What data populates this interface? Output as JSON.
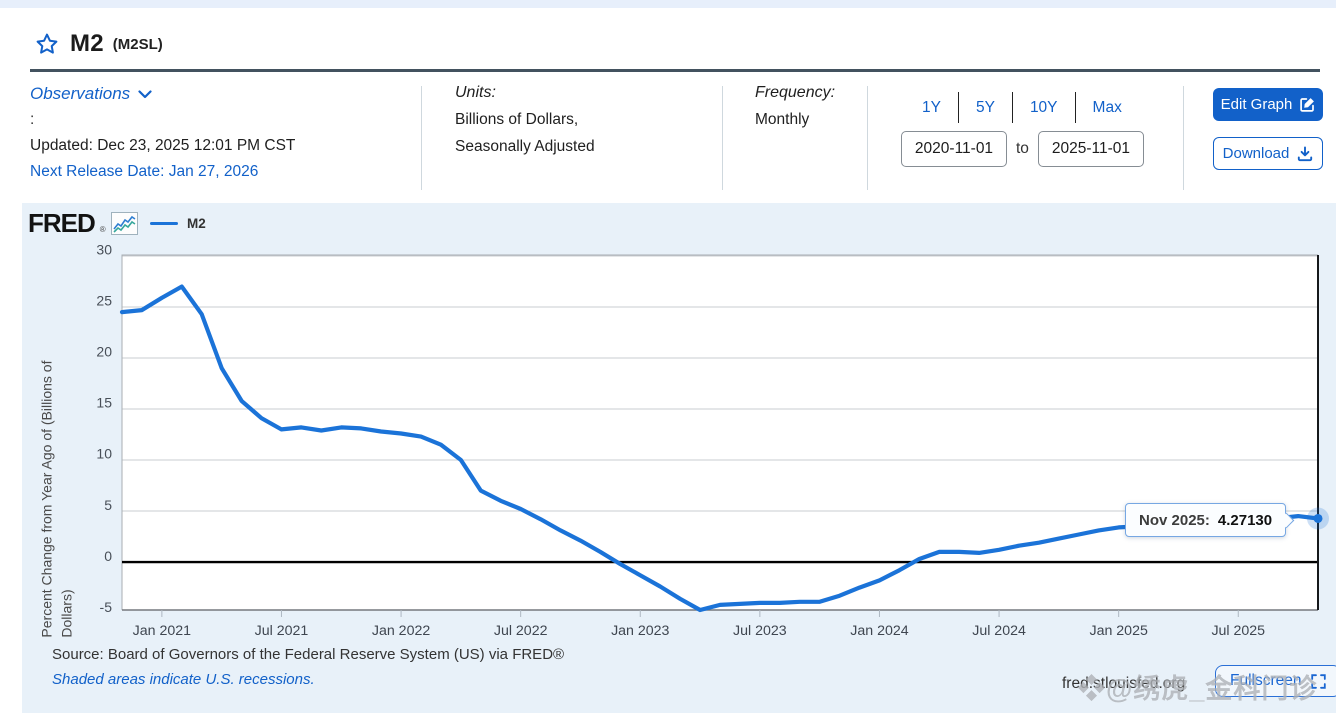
{
  "page": {
    "title": "M2",
    "series_id": "(M2SL)"
  },
  "header": {
    "observations_label": "Observations",
    "colon": ":",
    "updated": "Updated: Dec 23, 2025 12:01 PM CST",
    "next_release": "Next Release Date: Jan 27, 2026",
    "units_label": "Units:",
    "units_line1": "Billions of Dollars,",
    "units_line2": "Seasonally Adjusted",
    "frequency_label": "Frequency:",
    "frequency_value": "Monthly",
    "ranges": [
      "1Y",
      "5Y",
      "10Y",
      "Max"
    ],
    "date_from": "2020-11-01",
    "to_label": "to",
    "date_to": "2025-11-01",
    "edit_graph_label": "Edit Graph",
    "download_label": "Download"
  },
  "chart": {
    "logo_text": "FRED",
    "logo_reg": "®",
    "legend_label": "M2",
    "tooltip": {
      "date_label": "Nov 2025:",
      "value": "4.27130"
    },
    "source_line": "Source: Board of Governors of the Federal Reserve System (US) via FRED®",
    "recession_note": "Shaded areas indicate U.S. recessions.",
    "site_url": "fred.stlouisfed.org",
    "fullscreen_label": "Fullscreen"
  },
  "watermark": "❖@绣虎_金科门诊",
  "colors": {
    "accent_blue": "#1261c9",
    "line_blue": "#1b73d8",
    "chart_bg": "#e8f1f9",
    "zero_line": "#000000",
    "grid": "#c9cdd1",
    "halo": "rgba(27,115,216,0.22)"
  },
  "chart_data": {
    "type": "line",
    "title": "M2 (M2SL)",
    "ylabel": "Percent Change from Year Ago of (Billions of Dollars)",
    "ylabel_line1": "Percent Change from Year Ago of (Billions of",
    "ylabel_line2": "Dollars)",
    "x": [
      "2020-11",
      "2020-12",
      "2021-01",
      "2021-02",
      "2021-03",
      "2021-04",
      "2021-05",
      "2021-06",
      "2021-07",
      "2021-08",
      "2021-09",
      "2021-10",
      "2021-11",
      "2021-12",
      "2022-01",
      "2022-02",
      "2022-03",
      "2022-04",
      "2022-05",
      "2022-06",
      "2022-07",
      "2022-08",
      "2022-09",
      "2022-10",
      "2022-11",
      "2022-12",
      "2023-01",
      "2023-02",
      "2023-03",
      "2023-04",
      "2023-05",
      "2023-06",
      "2023-07",
      "2023-08",
      "2023-09",
      "2023-10",
      "2023-11",
      "2023-12",
      "2024-01",
      "2024-02",
      "2024-03",
      "2024-04",
      "2024-05",
      "2024-06",
      "2024-07",
      "2024-08",
      "2024-09",
      "2024-10",
      "2024-11",
      "2024-12",
      "2025-01",
      "2025-02",
      "2025-03",
      "2025-04",
      "2025-05",
      "2025-06",
      "2025-07",
      "2025-08",
      "2025-09",
      "2025-10",
      "2025-11"
    ],
    "series": [
      {
        "name": "M2",
        "values": [
          24.5,
          24.7,
          25.9,
          27.0,
          24.3,
          19.0,
          15.8,
          14.1,
          13.0,
          13.2,
          12.9,
          13.2,
          13.1,
          12.8,
          12.6,
          12.3,
          11.5,
          10.0,
          7.0,
          6.0,
          5.2,
          4.2,
          3.1,
          2.1,
          1.0,
          -0.2,
          -1.3,
          -2.4,
          -3.6,
          -4.7,
          -4.2,
          -4.1,
          -4.0,
          -4.0,
          -3.9,
          -3.9,
          -3.3,
          -2.5,
          -1.8,
          -0.8,
          0.3,
          1.0,
          1.0,
          0.9,
          1.2,
          1.6,
          1.9,
          2.3,
          2.7,
          3.1,
          3.4,
          3.5,
          3.6,
          3.6,
          3.6,
          3.7,
          3.9,
          4.1,
          4.3,
          4.5,
          4.2713
        ]
      }
    ],
    "yticks": [
      30,
      25,
      20,
      15,
      10,
      5,
      0,
      -5
    ],
    "xticks": [
      {
        "i": 2,
        "label": "Jan 2021"
      },
      {
        "i": 8,
        "label": "Jul 2021"
      },
      {
        "i": 14,
        "label": "Jan 2022"
      },
      {
        "i": 20,
        "label": "Jul 2022"
      },
      {
        "i": 26,
        "label": "Jan 2023"
      },
      {
        "i": 32,
        "label": "Jul 2023"
      },
      {
        "i": 38,
        "label": "Jan 2024"
      },
      {
        "i": 44,
        "label": "Jul 2024"
      },
      {
        "i": 50,
        "label": "Jan 2025"
      },
      {
        "i": 56,
        "label": "Jul 2025"
      }
    ],
    "ylim": [
      -4.7,
      30.1
    ],
    "grid": true,
    "zero_line": true,
    "legend_position": "top-left",
    "last_point": {
      "label": "Nov 2025",
      "value": 4.2713
    }
  }
}
